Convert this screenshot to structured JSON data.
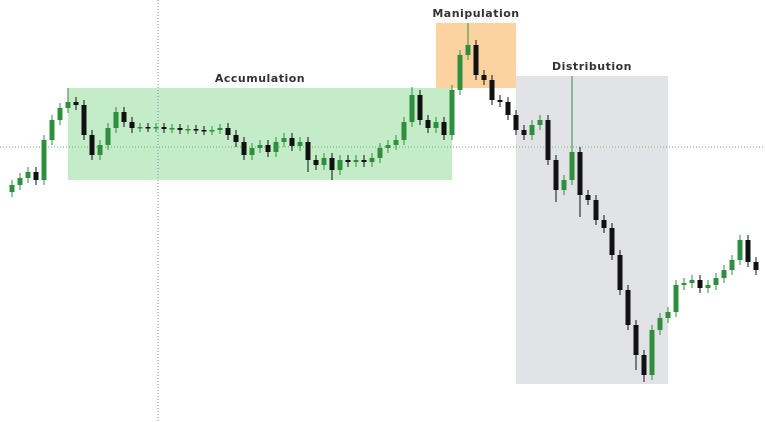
{
  "chart_data": {
    "type": "candlestick",
    "open": [
      230,
      237,
      244,
      250,
      242,
      282,
      302,
      314,
      320,
      317,
      287,
      267,
      277,
      294,
      310,
      300,
      294,
      295,
      294,
      295,
      293,
      294,
      292,
      293,
      292,
      291,
      292,
      294,
      287,
      280,
      267,
      274,
      277,
      270,
      280,
      284,
      276,
      280,
      262,
      257,
      264,
      252,
      262,
      260,
      262,
      260,
      264,
      274,
      277,
      282,
      300,
      327,
      302,
      294,
      300,
      287,
      332,
      367,
      377,
      347,
      342,
      322,
      320,
      307,
      292,
      287,
      297,
      302,
      262,
      232,
      242,
      270,
      227,
      222,
      202,
      194,
      167,
      132,
      97,
      67,
      47,
      92,
      104,
      110,
      137,
      139,
      142,
      134,
      137,
      144,
      152,
      162,
      182,
      160
    ],
    "high": [
      242,
      249,
      255,
      255,
      287,
      307,
      319,
      334,
      325,
      322,
      292,
      282,
      299,
      315,
      315,
      305,
      299,
      299,
      299,
      299,
      298,
      298,
      297,
      297,
      296,
      296,
      298,
      299,
      292,
      285,
      279,
      282,
      282,
      285,
      289,
      289,
      285,
      285,
      267,
      269,
      269,
      267,
      267,
      267,
      267,
      269,
      279,
      282,
      287,
      305,
      335,
      332,
      307,
      305,
      305,
      337,
      372,
      399,
      382,
      352,
      347,
      327,
      325,
      312,
      297,
      302,
      307,
      307,
      267,
      247,
      346,
      275,
      232,
      227,
      207,
      199,
      172,
      137,
      102,
      72,
      97,
      109,
      115,
      142,
      144,
      147,
      147,
      142,
      149,
      157,
      167,
      187,
      187,
      165
    ],
    "low": [
      225,
      232,
      239,
      237,
      237,
      277,
      297,
      309,
      312,
      282,
      262,
      262,
      272,
      289,
      295,
      289,
      290,
      290,
      290,
      289,
      289,
      288,
      288,
      288,
      287,
      287,
      288,
      282,
      275,
      262,
      262,
      269,
      265,
      265,
      275,
      271,
      271,
      250,
      252,
      252,
      242,
      247,
      255,
      255,
      255,
      255,
      259,
      269,
      272,
      277,
      295,
      297,
      289,
      289,
      282,
      282,
      327,
      362,
      342,
      337,
      317,
      315,
      302,
      287,
      282,
      282,
      292,
      257,
      220,
      227,
      237,
      205,
      217,
      197,
      189,
      162,
      127,
      92,
      52,
      40,
      42,
      87,
      99,
      105,
      132,
      134,
      129,
      129,
      132,
      139,
      147,
      157,
      155,
      147
    ],
    "close": [
      237,
      244,
      250,
      242,
      282,
      302,
      314,
      320,
      317,
      287,
      267,
      277,
      294,
      310,
      300,
      294,
      295,
      294,
      295,
      293,
      294,
      292,
      293,
      292,
      291,
      292,
      294,
      287,
      280,
      267,
      274,
      277,
      270,
      280,
      284,
      276,
      280,
      262,
      257,
      264,
      252,
      262,
      260,
      262,
      260,
      264,
      274,
      277,
      282,
      300,
      327,
      302,
      294,
      300,
      287,
      332,
      367,
      377,
      347,
      342,
      322,
      320,
      307,
      292,
      287,
      297,
      302,
      262,
      232,
      242,
      270,
      227,
      222,
      202,
      194,
      167,
      132,
      97,
      67,
      47,
      92,
      104,
      110,
      137,
      139,
      142,
      134,
      137,
      144,
      152,
      162,
      182,
      160,
      152
    ],
    "up_color": "#2f8f3f",
    "down_color": "#111111",
    "ylim": [
      0,
      422
    ],
    "zones": [
      {
        "label": "Accumulation",
        "start": 7,
        "end": 55,
        "high": 334,
        "low": 242,
        "color": "#c4ecc9"
      },
      {
        "label": "Manipulation",
        "start": 53,
        "end": 63,
        "high": 399,
        "low": 334,
        "color": "#fcd3a0"
      },
      {
        "label": "Distribution",
        "start": 63,
        "end": 82,
        "high": 346,
        "low": 38,
        "color": "#e2e3e7"
      }
    ]
  }
}
